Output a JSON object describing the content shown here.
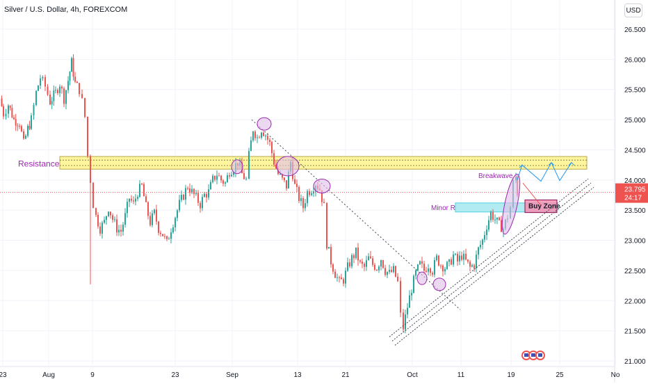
{
  "header": {
    "title": "Silver / U.S. Dollar, 4h, FOREXCOM",
    "currency": "USD"
  },
  "price_label": {
    "price": "23.795",
    "countdown": "24:17"
  },
  "chart_data": {
    "type": "candlestick",
    "title": "Silver / U.S. Dollar, 4h, FOREXCOM",
    "y_axis": {
      "ticks": [
        "26.500",
        "26.000",
        "25.500",
        "25.000",
        "24.500",
        "24.000",
        "23.500",
        "23.000",
        "22.500",
        "22.000",
        "21.500",
        "21.000"
      ],
      "range": [
        21.0,
        26.8
      ],
      "position": "right"
    },
    "x_axis": {
      "ticks": [
        "23",
        "Aug",
        "9",
        "23",
        "Sep",
        "13",
        "21",
        "Oct",
        "11",
        "19",
        "25",
        "No"
      ]
    },
    "grid": true,
    "current_price": 23.795,
    "path": [
      [
        0,
        25.35
      ],
      [
        5,
        25.1
      ],
      [
        12,
        25.25
      ],
      [
        20,
        25.0
      ],
      [
        28,
        24.95
      ],
      [
        34,
        24.6
      ],
      [
        40,
        24.85
      ],
      [
        45,
        25.0
      ],
      [
        52,
        25.45
      ],
      [
        58,
        25.7
      ],
      [
        65,
        25.55
      ],
      [
        72,
        25.3
      ],
      [
        80,
        25.45
      ],
      [
        86,
        25.6
      ],
      [
        92,
        25.35
      ],
      [
        98,
        25.65
      ],
      [
        103,
        25.95
      ],
      [
        108,
        25.6
      ],
      [
        114,
        25.5
      ],
      [
        118,
        25.3
      ],
      [
        122,
        25.05
      ],
      [
        126,
        24.4
      ],
      [
        130,
        24.0
      ],
      [
        134,
        23.6
      ],
      [
        138,
        23.4
      ],
      [
        144,
        23.2
      ],
      [
        150,
        23.3
      ],
      [
        156,
        23.55
      ],
      [
        162,
        23.35
      ],
      [
        168,
        23.2
      ],
      [
        174,
        23.15
      ],
      [
        180,
        23.4
      ],
      [
        186,
        23.7
      ],
      [
        192,
        23.6
      ],
      [
        198,
        23.8
      ],
      [
        204,
        23.9
      ],
      [
        210,
        23.55
      ],
      [
        216,
        23.3
      ],
      [
        222,
        23.45
      ],
      [
        228,
        23.2
      ],
      [
        234,
        23.1
      ],
      [
        240,
        22.95
      ],
      [
        246,
        23.2
      ],
      [
        252,
        23.4
      ],
      [
        258,
        23.6
      ],
      [
        264,
        23.75
      ],
      [
        270,
        23.9
      ],
      [
        276,
        23.8
      ],
      [
        282,
        23.7
      ],
      [
        288,
        23.6
      ],
      [
        294,
        23.75
      ],
      [
        300,
        23.8
      ],
      [
        306,
        24.0
      ],
      [
        312,
        24.1
      ],
      [
        318,
        24.0
      ],
      [
        324,
        23.95
      ],
      [
        330,
        24.15
      ],
      [
        336,
        24.2
      ],
      [
        342,
        24.3
      ],
      [
        348,
        24.1
      ],
      [
        354,
        24.0
      ],
      [
        358,
        24.4
      ],
      [
        364,
        24.85
      ],
      [
        370,
        24.7
      ],
      [
        376,
        24.85
      ],
      [
        382,
        24.75
      ],
      [
        388,
        24.6
      ],
      [
        394,
        24.3
      ],
      [
        400,
        24.1
      ],
      [
        406,
        24.0
      ],
      [
        412,
        23.9
      ],
      [
        418,
        24.3
      ],
      [
        424,
        23.9
      ],
      [
        430,
        23.7
      ],
      [
        436,
        23.55
      ],
      [
        442,
        23.8
      ],
      [
        448,
        23.85
      ],
      [
        454,
        23.95
      ],
      [
        460,
        23.85
      ],
      [
        466,
        23.55
      ],
      [
        470,
        22.95
      ],
      [
        476,
        22.65
      ],
      [
        482,
        22.45
      ],
      [
        488,
        22.3
      ],
      [
        494,
        22.35
      ],
      [
        500,
        22.55
      ],
      [
        506,
        22.7
      ],
      [
        512,
        22.8
      ],
      [
        518,
        22.6
      ],
      [
        524,
        22.55
      ],
      [
        530,
        22.7
      ],
      [
        536,
        22.6
      ],
      [
        542,
        22.55
      ],
      [
        548,
        22.7
      ],
      [
        554,
        22.5
      ],
      [
        560,
        22.45
      ],
      [
        566,
        22.5
      ],
      [
        572,
        22.3
      ],
      [
        576,
        21.75
      ],
      [
        580,
        21.55
      ],
      [
        586,
        21.9
      ],
      [
        592,
        22.2
      ],
      [
        598,
        22.45
      ],
      [
        604,
        22.6
      ],
      [
        610,
        22.5
      ],
      [
        616,
        22.6
      ],
      [
        622,
        22.5
      ],
      [
        628,
        22.7
      ],
      [
        634,
        22.6
      ],
      [
        640,
        22.55
      ],
      [
        646,
        22.6
      ],
      [
        652,
        22.75
      ],
      [
        658,
        22.65
      ],
      [
        664,
        22.75
      ],
      [
        670,
        22.65
      ],
      [
        676,
        22.55
      ],
      [
        682,
        22.6
      ],
      [
        688,
        22.85
      ],
      [
        694,
        23.0
      ],
      [
        700,
        23.25
      ],
      [
        706,
        23.45
      ],
      [
        712,
        23.35
      ],
      [
        718,
        23.25
      ],
      [
        724,
        23.2
      ],
      [
        730,
        23.4
      ],
      [
        734,
        23.55
      ],
      [
        738,
        23.95
      ],
      [
        742,
        24.05
      ],
      [
        744,
        23.8
      ]
    ]
  },
  "annotations": {
    "resistance_label": "Resistance",
    "breakwave_label": "Breakwave",
    "minor_r_label": "Minor R",
    "buy_zone_label": "Buy Zone"
  },
  "colors": {
    "up": "#26a69a",
    "down": "#ef5350",
    "resistance_fill": "#fff59d",
    "resistance_border": "#b7a84a",
    "annotation": "#9c27b0",
    "ellipse_fill": "#e1bee7",
    "minor_r_fill": "#b2ebf2",
    "buy_zone_fill": "#f48fb1",
    "price_label_bg": "#ef5350",
    "trendline": "#434651",
    "projection": "#2196f3"
  }
}
